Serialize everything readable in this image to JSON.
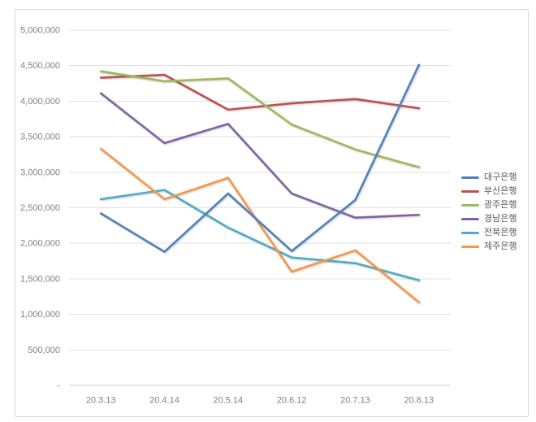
{
  "window": {
    "background_color": "#ffffff",
    "frame_border_color": "#d6d6d6"
  },
  "chart_data": {
    "type": "line",
    "title": "",
    "xlabel": "",
    "ylabel": "",
    "categories": [
      "20.3.13",
      "20.4.14",
      "20.5.14",
      "20.6.12",
      "20.7.13",
      "20.8.13"
    ],
    "series": [
      {
        "name": "대구은행",
        "color": "#4F81BD",
        "values": [
          2420000,
          1880000,
          2700000,
          1890000,
          2610000,
          4510000
        ]
      },
      {
        "name": "부산은행",
        "color": "#C0504D",
        "values": [
          4330000,
          4370000,
          3880000,
          3970000,
          4030000,
          3900000
        ]
      },
      {
        "name": "광주은행",
        "color": "#9BBB59",
        "values": [
          4420000,
          4280000,
          4320000,
          3670000,
          3320000,
          3070000
        ]
      },
      {
        "name": "경남은행",
        "color": "#8064A2",
        "values": [
          4110000,
          3410000,
          3680000,
          2700000,
          2360000,
          2400000
        ]
      },
      {
        "name": "전북은행",
        "color": "#4BACC6",
        "values": [
          2620000,
          2750000,
          2220000,
          1800000,
          1720000,
          1480000
        ]
      },
      {
        "name": "제주은행",
        "color": "#F79646",
        "values": [
          3330000,
          2620000,
          2920000,
          1600000,
          1900000,
          1170000
        ]
      }
    ],
    "ylim": [
      0,
      5000000
    ],
    "ytick_step": 500000,
    "ytick_labels_top_to_bottom": [
      "5,000,000",
      "4,500,000",
      "4,000,000",
      "3,500,000",
      "3,000,000",
      "2,500,000",
      "2,000,000",
      "1,500,000",
      "1,000,000",
      "500,000",
      "-"
    ],
    "grid": true,
    "legend_position": "right",
    "axis_text_color": "#808080",
    "legend_text_color": "#595959"
  }
}
